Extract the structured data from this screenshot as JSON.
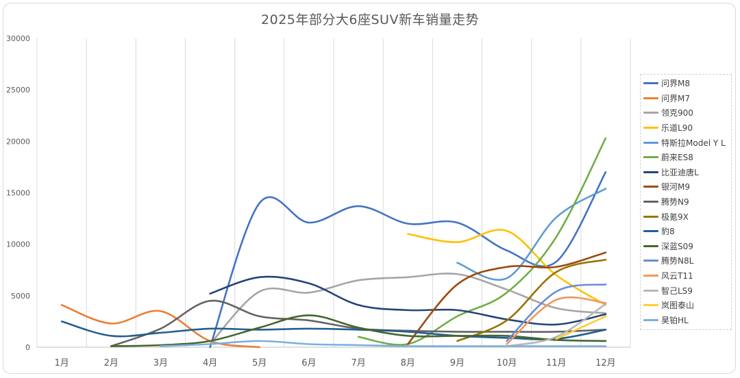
{
  "chart_data": {
    "type": "line",
    "title": "2025年部分大6座SUV新车销量走势",
    "xlabel": "",
    "ylabel": "",
    "categories": [
      "1月",
      "2月",
      "3月",
      "4月",
      "5月",
      "6月",
      "7月",
      "8月",
      "9月",
      "10月",
      "11月",
      "12月"
    ],
    "ylim": [
      0,
      30000
    ],
    "yticks": [
      0,
      5000,
      10000,
      15000,
      20000,
      25000,
      30000
    ],
    "grid": "vertical",
    "legend_position": "right",
    "series": [
      {
        "name": "问界M8",
        "color": "#4472c4",
        "values": [
          null,
          null,
          null,
          0,
          14000,
          12100,
          13700,
          12000,
          12100,
          9400,
          8300,
          17000
        ]
      },
      {
        "name": "问界M7",
        "color": "#ed7d31",
        "values": [
          4100,
          2300,
          3500,
          600,
          0,
          null,
          null,
          null,
          null,
          null,
          null,
          null
        ]
      },
      {
        "name": "领克900",
        "color": "#a5a5a5",
        "values": [
          null,
          null,
          null,
          300,
          5400,
          5300,
          6500,
          6800,
          7100,
          5600,
          3800,
          3300
        ]
      },
      {
        "name": "乐道L90",
        "color": "#ffc000",
        "values": [
          null,
          null,
          null,
          null,
          null,
          null,
          null,
          11000,
          10200,
          11300,
          7000,
          4100
        ]
      },
      {
        "name": "特斯拉Model Y L",
        "color": "#5b9bd5",
        "values": [
          null,
          null,
          null,
          null,
          null,
          null,
          null,
          null,
          8200,
          6700,
          12600,
          15400
        ]
      },
      {
        "name": "蔚来ES8",
        "color": "#70ad47",
        "values": [
          null,
          null,
          null,
          null,
          null,
          null,
          1000,
          300,
          3000,
          5300,
          10700,
          20300
        ]
      },
      {
        "name": "比亚迪唐L",
        "color": "#264478",
        "values": [
          null,
          null,
          null,
          5200,
          6800,
          6200,
          4100,
          3600,
          3600,
          2700,
          2200,
          3200
        ]
      },
      {
        "name": "银河M9",
        "color": "#9e480e",
        "values": [
          null,
          null,
          null,
          null,
          null,
          null,
          null,
          300,
          6100,
          7800,
          7800,
          9200
        ]
      },
      {
        "name": "腾势N9",
        "color": "#636363",
        "values": [
          null,
          100,
          1800,
          4500,
          3000,
          2600,
          1800,
          1600,
          1500,
          1500,
          1500,
          1700
        ]
      },
      {
        "name": "极氪9X",
        "color": "#997300",
        "values": [
          null,
          null,
          null,
          null,
          null,
          null,
          null,
          null,
          600,
          2600,
          7300,
          8500
        ]
      },
      {
        "name": "豹8",
        "color": "#255e91",
        "values": [
          2500,
          1100,
          1400,
          1800,
          1700,
          1800,
          1700,
          1500,
          1100,
          900,
          800,
          1700
        ]
      },
      {
        "name": "深蓝S09",
        "color": "#43682b",
        "values": [
          null,
          100,
          200,
          600,
          1900,
          3100,
          1900,
          1100,
          1100,
          1100,
          700,
          600
        ]
      },
      {
        "name": "腾势N8L",
        "color": "#698ed0",
        "values": [
          null,
          null,
          null,
          null,
          null,
          null,
          null,
          null,
          null,
          600,
          5400,
          6100
        ]
      },
      {
        "name": "风云T11",
        "color": "#f1975a",
        "values": [
          null,
          null,
          null,
          null,
          null,
          null,
          null,
          null,
          null,
          300,
          4600,
          4300
        ]
      },
      {
        "name": "智己LS9",
        "color": "#b7b7b7",
        "values": [
          null,
          null,
          null,
          null,
          null,
          null,
          null,
          null,
          null,
          100,
          1000,
          4200
        ]
      },
      {
        "name": "岚图泰山",
        "color": "#ffcd33",
        "values": [
          null,
          null,
          null,
          null,
          null,
          null,
          null,
          null,
          null,
          null,
          800,
          3000
        ]
      },
      {
        "name": "昊铂HL",
        "color": "#7cafdd",
        "values": [
          null,
          null,
          100,
          300,
          600,
          300,
          200,
          100,
          100,
          100,
          100,
          100
        ]
      }
    ]
  }
}
